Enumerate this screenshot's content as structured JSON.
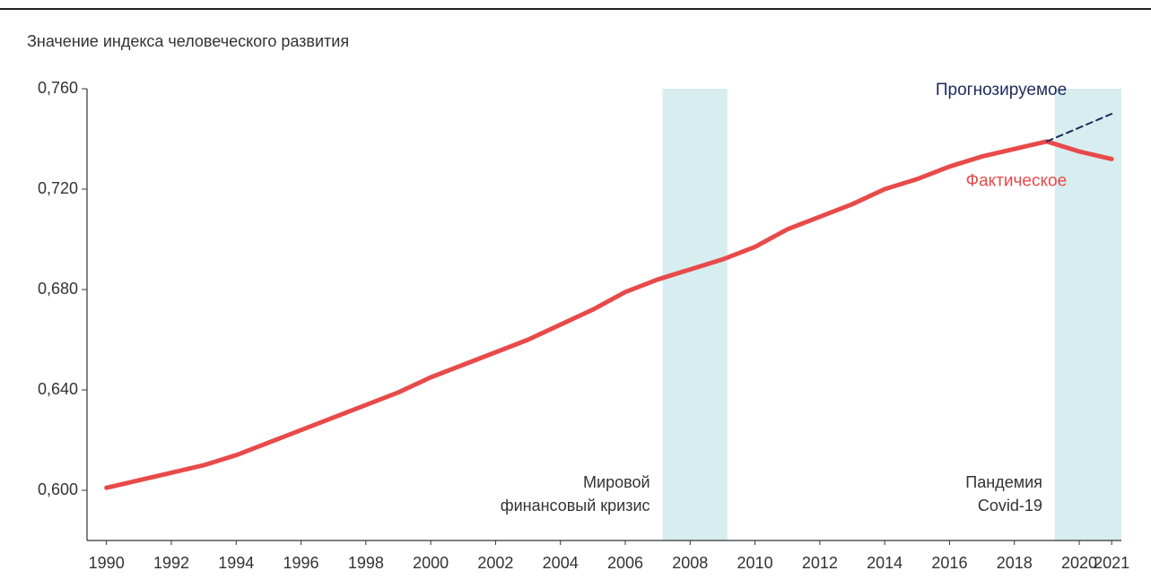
{
  "chart_data": {
    "type": "line",
    "ylabel": "Значение индекса человеческого развития",
    "x": [
      1990,
      1991,
      1992,
      1993,
      1994,
      1995,
      1996,
      1997,
      1998,
      1999,
      2000,
      2001,
      2002,
      2003,
      2004,
      2005,
      2006,
      2007,
      2008,
      2009,
      2010,
      2011,
      2012,
      2013,
      2014,
      2015,
      2016,
      2017,
      2018,
      2019,
      2020,
      2021
    ],
    "series": [
      {
        "name": "Фактическое",
        "color": "#e84a4a",
        "dashed": false,
        "values": [
          0.601,
          0.604,
          0.607,
          0.61,
          0.614,
          0.619,
          0.624,
          0.629,
          0.634,
          0.639,
          0.645,
          0.65,
          0.655,
          0.66,
          0.666,
          0.672,
          0.679,
          0.684,
          0.688,
          0.692,
          0.697,
          0.704,
          0.709,
          0.714,
          0.72,
          0.724,
          0.729,
          0.733,
          0.736,
          0.739,
          0.735,
          0.732
        ]
      },
      {
        "name": "Прогнозируемое",
        "color": "#1f2a5c",
        "dashed": true,
        "values": [
          null,
          null,
          null,
          null,
          null,
          null,
          null,
          null,
          null,
          null,
          null,
          null,
          null,
          null,
          null,
          null,
          null,
          null,
          null,
          null,
          null,
          null,
          null,
          null,
          null,
          null,
          null,
          null,
          null,
          0.739,
          0.7445,
          0.75
        ]
      }
    ],
    "bands": [
      {
        "x0": 2007.15,
        "x1": 2009.15,
        "color": "#d7edef",
        "label": [
          "Мировой",
          "финансовый кризис"
        ]
      },
      {
        "x0": 2019.25,
        "x1": 2021.3,
        "color": "#d7edef",
        "label": [
          "Пандемия",
          "Covid-19"
        ]
      }
    ],
    "xlim": [
      1989.4,
      2021.3
    ],
    "xticks": [
      1990,
      1992,
      1994,
      1996,
      1998,
      2000,
      2002,
      2004,
      2006,
      2008,
      2010,
      2012,
      2014,
      2016,
      2018,
      2020,
      2021
    ],
    "ylim": [
      0.58,
      0.76
    ],
    "yticks": [
      {
        "value": 0.6,
        "label": "0,600"
      },
      {
        "value": 0.64,
        "label": "0,640"
      },
      {
        "value": 0.68,
        "label": "0,680"
      },
      {
        "value": 0.72,
        "label": "0,720"
      },
      {
        "value": 0.76,
        "label": "0,760"
      }
    ],
    "grid": false
  }
}
